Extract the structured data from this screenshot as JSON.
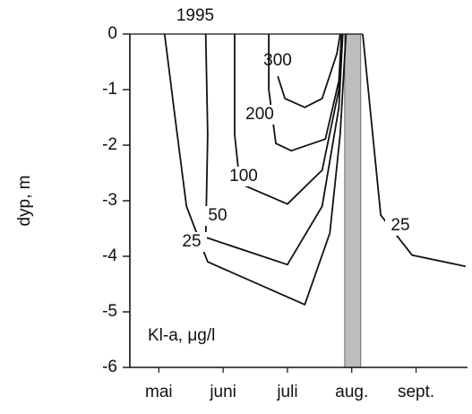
{
  "chart_data": {
    "type": "contour",
    "title": "1995",
    "y_label": "dyp, m",
    "annotation": "Kl-a, μg/l",
    "xlim": [
      4.55,
      9.8
    ],
    "ylim": [
      -6,
      0
    ],
    "yticks": [
      0,
      -1,
      -2,
      -3,
      -4,
      -5,
      -6
    ],
    "xticks": [
      {
        "value": 5,
        "label": "mai"
      },
      {
        "value": 6,
        "label": "juni"
      },
      {
        "value": 7,
        "label": "juli"
      },
      {
        "value": 8,
        "label": "aug."
      },
      {
        "value": 9,
        "label": "sept."
      }
    ],
    "shaded_band": [
      7.89,
      8.14
    ],
    "color": "#111111",
    "series": [
      {
        "name": "300",
        "x": [
          6.85,
          6.96,
          7.27,
          7.54,
          7.77,
          7.82
        ],
        "values": [
          -0.76,
          -1.16,
          -1.32,
          -1.16,
          -0.35,
          0
        ]
      },
      {
        "name": "200",
        "x": [
          6.71,
          6.71,
          6.82,
          7.06,
          7.59,
          7.8,
          7.84
        ],
        "values": [
          0,
          -1.0,
          -1.97,
          -2.1,
          -1.89,
          -0.84,
          0
        ]
      },
      {
        "name": "100",
        "x": [
          6.18,
          6.18,
          6.26,
          7.0,
          7.54,
          7.8,
          7.85
        ],
        "values": [
          0,
          -1.81,
          -2.69,
          -3.06,
          -2.45,
          -1.0,
          0
        ]
      },
      {
        "name": "50",
        "x": [
          5.73,
          5.76,
          5.73,
          7.0,
          7.54,
          7.8,
          7.86
        ],
        "values": [
          0,
          -1.81,
          -3.66,
          -4.15,
          -3.1,
          -1.32,
          0
        ]
      },
      {
        "name": "25",
        "x": [
          5.09,
          5.25,
          5.43,
          5.76,
          7.27,
          7.66,
          7.82,
          7.91
        ],
        "values": [
          0,
          -1.48,
          -3.1,
          -4.1,
          -4.87,
          -3.58,
          -1.81,
          0
        ]
      },
      {
        "name": "25",
        "x": [
          8.17,
          8.45,
          8.94,
          9.77
        ],
        "values": [
          0,
          -3.26,
          -3.98,
          -4.18
        ]
      }
    ]
  }
}
